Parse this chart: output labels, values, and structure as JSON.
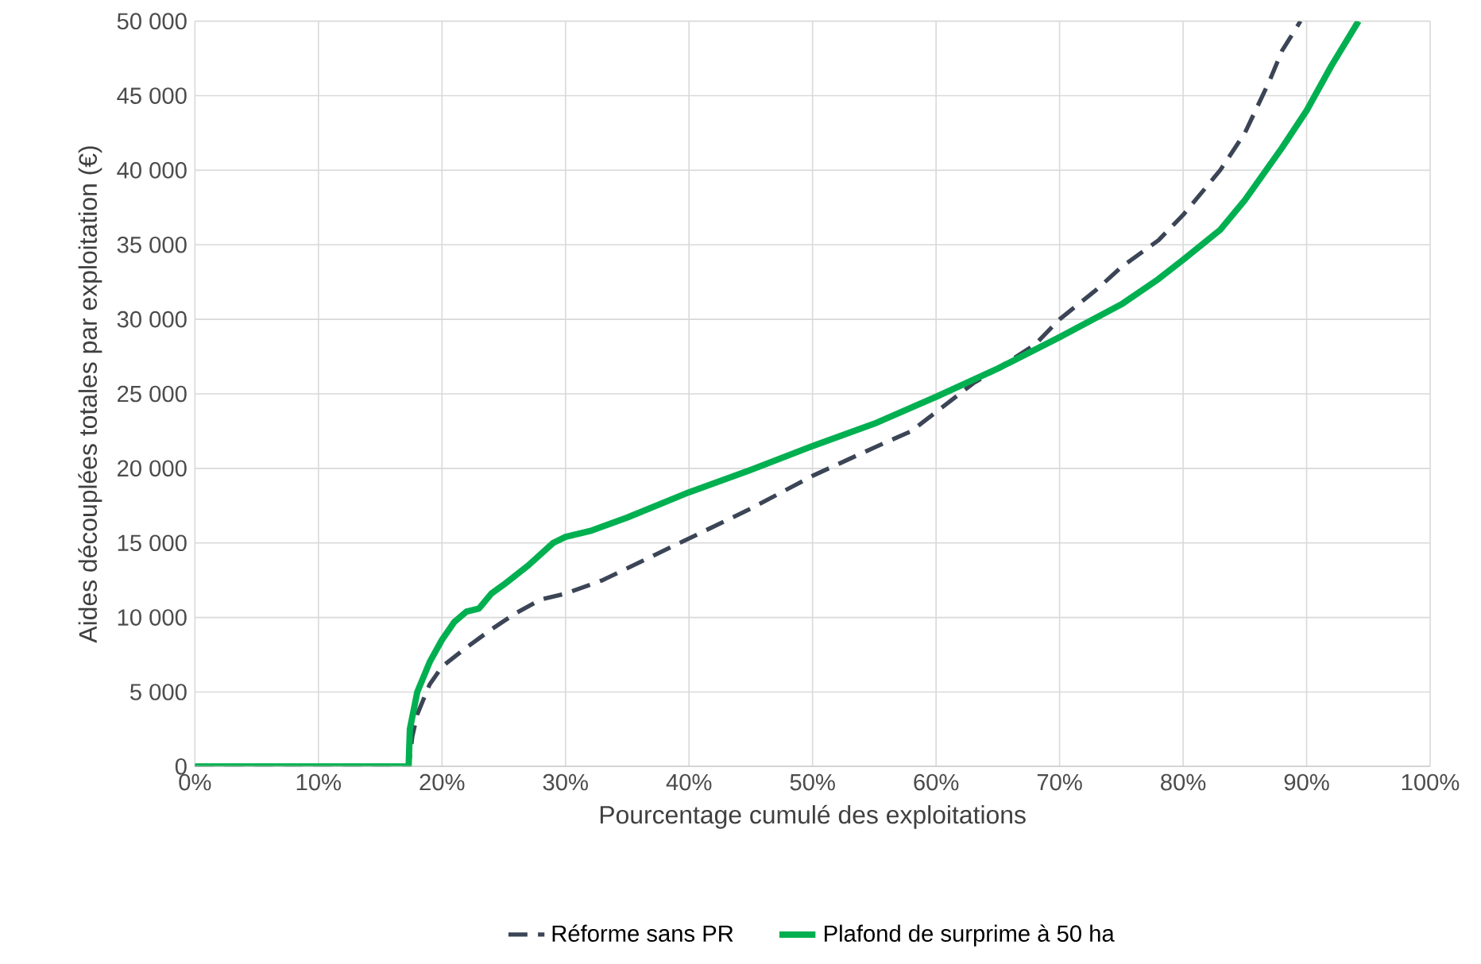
{
  "chart_data": {
    "type": "line",
    "xlabel": "Pourcentage cumulé des exploitations",
    "ylabel": "Aides découplées totales par exploitation (€)",
    "xlim": [
      0,
      100
    ],
    "ylim": [
      0,
      50000
    ],
    "xticks": [
      {
        "value": 0,
        "label": "0%"
      },
      {
        "value": 10,
        "label": "10%"
      },
      {
        "value": 20,
        "label": "20%"
      },
      {
        "value": 30,
        "label": "30%"
      },
      {
        "value": 40,
        "label": "40%"
      },
      {
        "value": 50,
        "label": "50%"
      },
      {
        "value": 60,
        "label": "60%"
      },
      {
        "value": 70,
        "label": "70%"
      },
      {
        "value": 80,
        "label": "80%"
      },
      {
        "value": 90,
        "label": "90%"
      },
      {
        "value": 100,
        "label": "100%"
      }
    ],
    "yticks": [
      {
        "value": 0,
        "label": "0"
      },
      {
        "value": 5000,
        "label": "5 000"
      },
      {
        "value": 10000,
        "label": "10 000"
      },
      {
        "value": 15000,
        "label": "15 000"
      },
      {
        "value": 20000,
        "label": "20 000"
      },
      {
        "value": 25000,
        "label": "25 000"
      },
      {
        "value": 30000,
        "label": "30 000"
      },
      {
        "value": 35000,
        "label": "35 000"
      },
      {
        "value": 40000,
        "label": "40 000"
      },
      {
        "value": 45000,
        "label": "45 000"
      },
      {
        "value": 50000,
        "label": "50 000"
      }
    ],
    "grid": true,
    "legend": "bottom",
    "marker": "none",
    "series": [
      {
        "name": "Réforme sans PR",
        "color": "#3b4556",
        "line_style": "dashed",
        "x": [
          0,
          17.3,
          17.6,
          18,
          19,
          20,
          22,
          24,
          26,
          28,
          30,
          33,
          35,
          40,
          45,
          50,
          55,
          58,
          63,
          65,
          68,
          70,
          73,
          75,
          78,
          80,
          83,
          85,
          87,
          88,
          89.5
        ],
        "values": [
          0,
          0,
          2000,
          3500,
          5500,
          6700,
          8000,
          9200,
          10300,
          11200,
          11600,
          12500,
          13300,
          15300,
          17300,
          19500,
          21400,
          22500,
          25700,
          26700,
          28300,
          30000,
          32000,
          33500,
          35300,
          37000,
          40000,
          42500,
          46000,
          48000,
          50000
        ]
      },
      {
        "name": "Plafond de surprime à 50 ha",
        "color": "#00b050",
        "line_style": "solid",
        "x": [
          0,
          17.3,
          17.4,
          18,
          19,
          20,
          21,
          22,
          23,
          24,
          25,
          27,
          29,
          30,
          32,
          35,
          40,
          45,
          50,
          55,
          60,
          65,
          70,
          75,
          78,
          80,
          83,
          85,
          88,
          90,
          92,
          94.2
        ],
        "values": [
          0,
          0,
          2500,
          5000,
          7000,
          8500,
          9700,
          10400,
          10600,
          11600,
          12200,
          13500,
          15000,
          15400,
          15800,
          16700,
          18400,
          19900,
          21500,
          23000,
          24800,
          26700,
          28800,
          31000,
          32700,
          34000,
          36000,
          38000,
          41500,
          44000,
          47000,
          50000
        ]
      }
    ]
  }
}
